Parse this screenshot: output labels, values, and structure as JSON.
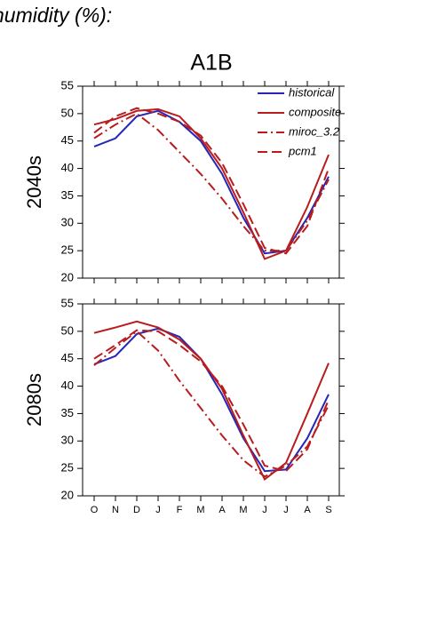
{
  "heading": "humidity (%):",
  "title": "A1B",
  "chart_data": [
    {
      "type": "line",
      "ylabel": "2040s",
      "categories": [
        null,
        null,
        null,
        null,
        null,
        null,
        null,
        null,
        null,
        null,
        null,
        null
      ],
      "ylim": [
        20,
        55
      ],
      "yticks": [
        20,
        25,
        30,
        35,
        40,
        45,
        50,
        55
      ],
      "legend": "upper right",
      "series": [
        {
          "name": "historical",
          "color": "#2626b8",
          "linestyle": "solid",
          "values": [
            44,
            45.5,
            49.5,
            50.5,
            48.5,
            45,
            39,
            31,
            24.5,
            25,
            31,
            38.5
          ]
        },
        {
          "name": "composite",
          "color": "#b81c1c",
          "linestyle": "solid",
          "values": [
            48,
            49,
            50.5,
            50.8,
            49.5,
            45.5,
            40,
            32,
            23.5,
            25,
            33,
            42.5
          ]
        },
        {
          "name": "miroc_3.2",
          "color": "#b81c1c",
          "linestyle": "dashdot",
          "values": [
            45.5,
            48,
            50,
            47,
            43,
            39,
            34.5,
            29.5,
            25,
            25,
            30.5,
            38
          ]
        },
        {
          "name": "pcm1",
          "color": "#b81c1c",
          "linestyle": "dashed",
          "values": [
            46.5,
            49.5,
            51,
            50,
            48.5,
            46,
            41,
            33.5,
            25.5,
            24.5,
            29.5,
            40
          ]
        }
      ]
    },
    {
      "type": "line",
      "ylabel": "2080s",
      "categories": [
        "O",
        "N",
        "D",
        "J",
        "F",
        "M",
        "A",
        "M",
        "J",
        "J",
        "A",
        "S"
      ],
      "ylim": [
        20,
        55
      ],
      "yticks": [
        20,
        25,
        30,
        35,
        40,
        45,
        50,
        55
      ],
      "series": [
        {
          "name": "historical",
          "color": "#2626b8",
          "linestyle": "solid",
          "values": [
            44,
            45.5,
            49.5,
            50.5,
            49,
            45,
            38.5,
            30.5,
            24.5,
            24.8,
            30.5,
            38.5
          ]
        },
        {
          "name": "composite",
          "color": "#b81c1c",
          "linestyle": "solid",
          "values": [
            49.7,
            50.7,
            51.8,
            50.7,
            48.5,
            45,
            39.5,
            31,
            23,
            26,
            35,
            44.2
          ]
        },
        {
          "name": "miroc_3.2",
          "color": "#b81c1c",
          "linestyle": "dashdot",
          "values": [
            43.8,
            47,
            50,
            46.5,
            41,
            36,
            31,
            26.5,
            23.5,
            25.5,
            29,
            36.5
          ]
        },
        {
          "name": "pcm1",
          "color": "#b81c1c",
          "linestyle": "dashed",
          "values": [
            45,
            47.5,
            50.2,
            50,
            47.5,
            44.5,
            40,
            33,
            25.5,
            24.5,
            28.5,
            37.5
          ]
        }
      ]
    }
  ]
}
